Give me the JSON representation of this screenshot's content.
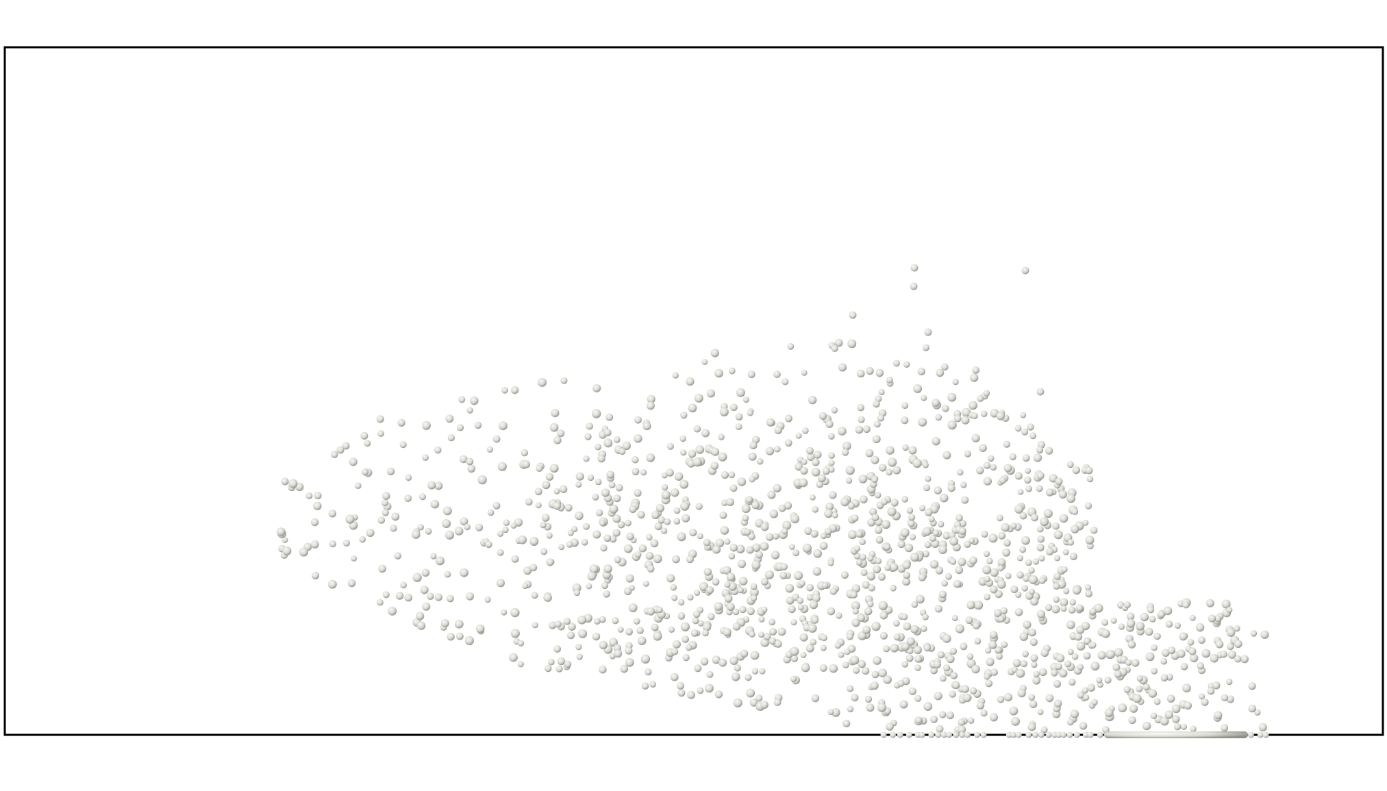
{
  "scene": {
    "background": "#ffffff",
    "frame_color": "#000000",
    "particle_fill": "#dcdcd6",
    "particle_shade": "#8e8e88",
    "particle_highlight": "#f8f8f4"
  }
}
